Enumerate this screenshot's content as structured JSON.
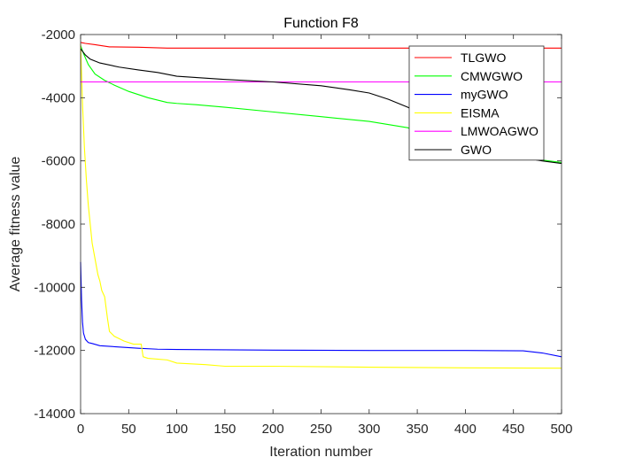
{
  "chart_data": {
    "type": "line",
    "title": "Function F8",
    "xlabel": "Iteration number",
    "ylabel": "Average fitness value",
    "xlim": [
      0,
      500
    ],
    "ylim": [
      -14000,
      -2000
    ],
    "xticks": [
      0,
      50,
      100,
      150,
      200,
      250,
      300,
      350,
      400,
      450,
      500
    ],
    "yticks": [
      -14000,
      -12000,
      -10000,
      -8000,
      -6000,
      -4000,
      -2000
    ],
    "grid": false,
    "legend_position": "top-right",
    "series": [
      {
        "name": "TLGWO",
        "color": "#ff0000",
        "x": [
          0,
          5,
          15,
          30,
          60,
          90,
          150,
          250,
          350,
          450,
          500
        ],
        "y": [
          -2250,
          -2280,
          -2320,
          -2390,
          -2400,
          -2430,
          -2430,
          -2430,
          -2430,
          -2430,
          -2430
        ]
      },
      {
        "name": "CMWGWO",
        "color": "#00ff00",
        "x": [
          0,
          3,
          8,
          15,
          25,
          35,
          50,
          70,
          90,
          100,
          120,
          150,
          200,
          250,
          300,
          340,
          350,
          380,
          420,
          460,
          500
        ],
        "y": [
          -2350,
          -2600,
          -2950,
          -3250,
          -3450,
          -3600,
          -3800,
          -4000,
          -4150,
          -4180,
          -4220,
          -4300,
          -4450,
          -4600,
          -4750,
          -4950,
          -5050,
          -5250,
          -5600,
          -5900,
          -6050
        ]
      },
      {
        "name": "myGWO",
        "color": "#0000ff",
        "x": [
          0,
          1,
          2,
          3,
          5,
          8,
          12,
          20,
          35,
          60,
          80,
          100,
          150,
          200,
          300,
          400,
          460,
          480,
          500
        ],
        "y": [
          -9200,
          -10400,
          -11100,
          -11450,
          -11650,
          -11750,
          -11780,
          -11850,
          -11880,
          -11930,
          -11960,
          -11970,
          -11980,
          -11990,
          -12000,
          -12000,
          -12010,
          -12080,
          -12200
        ]
      },
      {
        "name": "EISMA",
        "color": "#ffff00",
        "x": [
          0,
          2,
          4,
          6,
          8,
          10,
          12,
          15,
          18,
          20,
          22,
          25,
          28,
          30,
          35,
          45,
          55,
          63,
          65,
          70,
          90,
          100,
          130,
          150,
          200,
          300,
          400,
          500
        ],
        "y": [
          -2300,
          -4200,
          -5600,
          -6600,
          -7400,
          -8000,
          -8600,
          -9100,
          -9600,
          -9800,
          -10100,
          -10300,
          -11000,
          -11400,
          -11550,
          -11700,
          -11800,
          -11800,
          -12200,
          -12250,
          -12300,
          -12400,
          -12450,
          -12500,
          -12500,
          -12530,
          -12550,
          -12560
        ]
      },
      {
        "name": "LMWOAGWO",
        "color": "#ff00ff",
        "x": [
          0,
          500
        ],
        "y": [
          -3500,
          -3500
        ]
      },
      {
        "name": "GWO",
        "color": "#000000",
        "x": [
          0,
          5,
          10,
          20,
          40,
          60,
          80,
          100,
          150,
          200,
          250,
          280,
          300,
          320,
          340,
          350,
          360,
          380,
          400,
          420,
          440,
          460,
          480,
          500
        ],
        "y": [
          -2450,
          -2650,
          -2780,
          -2900,
          -3030,
          -3120,
          -3200,
          -3320,
          -3420,
          -3500,
          -3620,
          -3750,
          -3850,
          -4050,
          -4300,
          -4450,
          -4700,
          -5000,
          -5300,
          -5550,
          -5750,
          -5900,
          -6000,
          -6080
        ]
      }
    ]
  }
}
